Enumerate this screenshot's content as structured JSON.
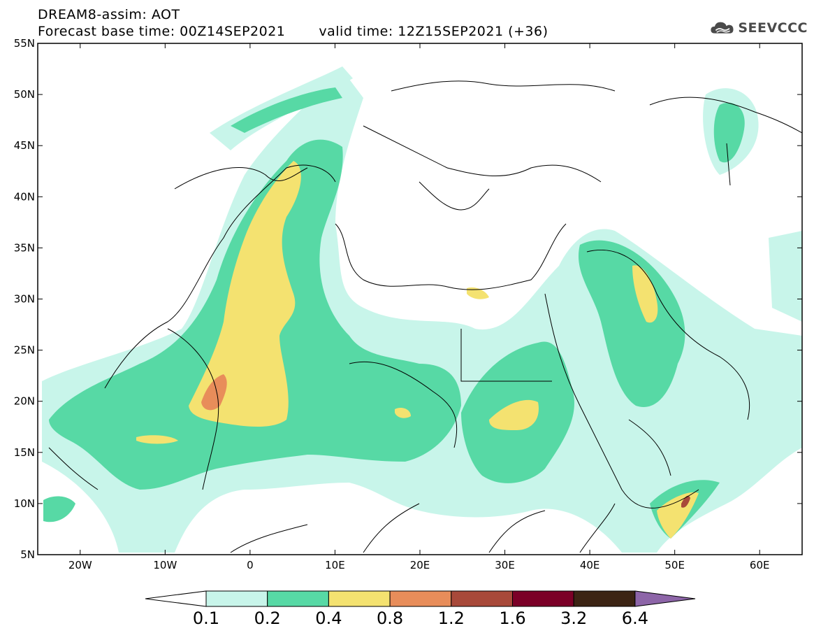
{
  "header": {
    "title_line1": "DREAM8-assim: AOT",
    "base_time": "Forecast base time: 00Z14SEP2021",
    "valid_time": "valid time: 12Z15SEP2021 (+36)"
  },
  "logo": {
    "text": "SEEVCCC",
    "icon": "cloud-icon"
  },
  "map": {
    "lon_range": [
      -25,
      65
    ],
    "lat_range": [
      5,
      55
    ],
    "lat_ticks": [
      "55N",
      "50N",
      "45N",
      "40N",
      "35N",
      "30N",
      "25N",
      "20N",
      "15N",
      "10N",
      "5N"
    ],
    "lon_ticks": [
      "20W",
      "10W",
      "0",
      "10E",
      "20E",
      "30E",
      "40E",
      "50E",
      "60E"
    ]
  },
  "colorbar": {
    "labels": [
      "0.1",
      "0.2",
      "0.4",
      "0.8",
      "1.2",
      "1.6",
      "3.2",
      "6.4"
    ],
    "colors": [
      "#ffffff",
      "#c8f5ea",
      "#57d9a5",
      "#f4e270",
      "#e88d5a",
      "#a8493a",
      "#7b0027",
      "#3c2414",
      "#8d65a8"
    ]
  }
}
